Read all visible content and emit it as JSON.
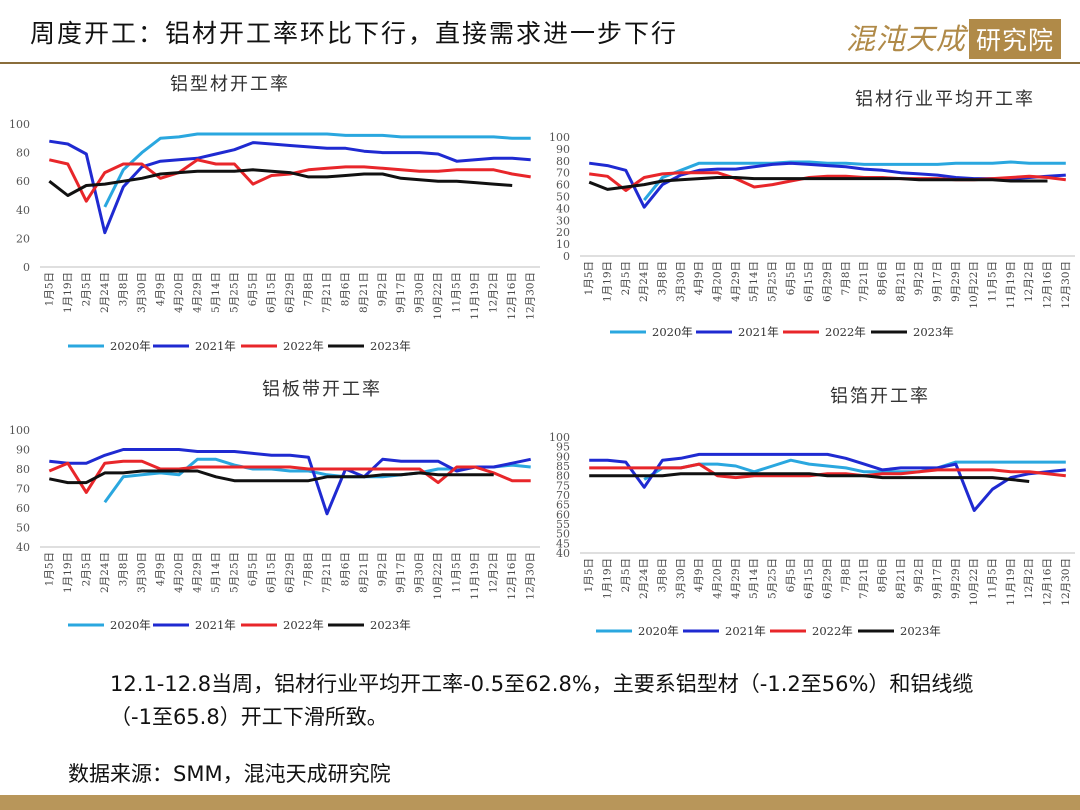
{
  "header": {
    "title": "周度开工：铝材开工率环比下行，直接需求进一步下行",
    "logo_text": "混沌天成",
    "logo_box_text": "研究院"
  },
  "summary": "12.1-12.8当周，铝材行业平均开工率-0.5至62.8%，主要系铝型材（-1.2至56%）和铝线缆（-1至65.8）开工下滑所致。",
  "source": "数据来源：SMM，混沌天成研究院",
  "colors": {
    "2020": "#2aa7df",
    "2021": "#1f2ad1",
    "2022": "#e8262a",
    "2023": "#111111",
    "accent": "#b08a48"
  },
  "chart_data": [
    {
      "type": "line",
      "title": "铝型材开工率",
      "x": [
        "1月5日",
        "1月19日",
        "2月5日",
        "2月24日",
        "3月8日",
        "3月30日",
        "4月9日",
        "4月20日",
        "4月29日",
        "5月14日",
        "5月25日",
        "6月5日",
        "6月15日",
        "6月29日",
        "7月8日",
        "7月21日",
        "8月6日",
        "8月21日",
        "9月2日",
        "9月17日",
        "9月30日",
        "10月22日",
        "11月5日",
        "11月19日",
        "12月2日",
        "12月16日",
        "12月30日"
      ],
      "ylim": [
        0,
        100
      ],
      "yticks": [
        0,
        20,
        40,
        60,
        80,
        100
      ],
      "series": [
        {
          "name": "2020年",
          "values": [
            null,
            null,
            null,
            42,
            68,
            80,
            90,
            91,
            93,
            93,
            93,
            93,
            93,
            93,
            93,
            93,
            92,
            92,
            92,
            91,
            91,
            91,
            91,
            91,
            91,
            90,
            90
          ]
        },
        {
          "name": "2021年",
          "values": [
            88,
            86,
            79,
            24,
            56,
            70,
            74,
            75,
            76,
            79,
            82,
            87,
            86,
            85,
            84,
            83,
            83,
            81,
            80,
            80,
            80,
            79,
            74,
            75,
            76,
            76,
            75
          ]
        },
        {
          "name": "2022年",
          "values": [
            75,
            72,
            46,
            66,
            72,
            72,
            62,
            66,
            75,
            72,
            72,
            58,
            64,
            65,
            68,
            69,
            70,
            70,
            69,
            68,
            67,
            67,
            68,
            68,
            68,
            65,
            63
          ]
        },
        {
          "name": "2023年",
          "values": [
            60,
            50,
            57,
            58,
            60,
            62,
            65,
            66,
            67,
            67,
            67,
            68,
            67,
            66,
            63,
            63,
            64,
            65,
            65,
            62,
            61,
            60,
            60,
            59,
            58,
            57,
            null
          ]
        }
      ]
    },
    {
      "type": "line",
      "title": "铝材行业平均开工率",
      "x": [
        "1月5日",
        "1月19日",
        "2月5日",
        "2月24日",
        "3月8日",
        "3月30日",
        "4月9日",
        "4月20日",
        "4月29日",
        "5月14日",
        "5月25日",
        "6月5日",
        "6月15日",
        "6月29日",
        "7月8日",
        "7月21日",
        "8月6日",
        "8月21日",
        "9月2日",
        "9月17日",
        "9月29日",
        "10月22日",
        "11月5日",
        "11月19日",
        "12月2日",
        "12月16日",
        "12月30日"
      ],
      "ylim": [
        0,
        100
      ],
      "yticks": [
        0,
        10,
        20,
        30,
        40,
        50,
        60,
        70,
        80,
        90,
        100
      ],
      "series": [
        {
          "name": "2020年",
          "values": [
            null,
            null,
            null,
            47,
            66,
            72,
            78,
            78,
            78,
            78,
            78,
            79,
            79,
            78,
            78,
            77,
            77,
            77,
            77,
            77,
            78,
            78,
            78,
            79,
            78,
            78,
            78
          ]
        },
        {
          "name": "2021年",
          "values": [
            78,
            76,
            72,
            41,
            60,
            68,
            72,
            73,
            73,
            75,
            77,
            78,
            77,
            76,
            75,
            73,
            72,
            70,
            69,
            68,
            66,
            65,
            65,
            65,
            66,
            67,
            68
          ]
        },
        {
          "name": "2022年",
          "values": [
            69,
            67,
            55,
            66,
            69,
            70,
            70,
            70,
            65,
            58,
            60,
            63,
            66,
            67,
            67,
            66,
            66,
            65,
            65,
            65,
            64,
            64,
            65,
            66,
            67,
            66,
            64
          ]
        },
        {
          "name": "2023年",
          "values": [
            62,
            56,
            58,
            60,
            63,
            64,
            65,
            66,
            66,
            65,
            65,
            65,
            65,
            65,
            65,
            65,
            65,
            65,
            64,
            64,
            64,
            64,
            64,
            63,
            63,
            63,
            null
          ]
        }
      ]
    },
    {
      "type": "line",
      "title": "铝板带开工率",
      "x": [
        "1月5日",
        "1月19日",
        "2月5日",
        "2月24日",
        "3月8日",
        "3月30日",
        "4月9日",
        "4月20日",
        "4月29日",
        "5月14日",
        "5月25日",
        "6月5日",
        "6月15日",
        "6月29日",
        "7月8日",
        "7月21日",
        "8月6日",
        "8月21日",
        "9月2日",
        "9月17日",
        "9月30日",
        "10月22日",
        "11月5日",
        "11月19日",
        "12月2日",
        "12月16日",
        "12月30日"
      ],
      "ylim": [
        40,
        100
      ],
      "yticks": [
        40,
        50,
        60,
        70,
        80,
        90,
        100
      ],
      "series": [
        {
          "name": "2020年",
          "values": [
            null,
            null,
            null,
            63,
            76,
            77,
            78,
            77,
            85,
            85,
            82,
            80,
            80,
            79,
            79,
            77,
            76,
            76,
            76,
            77,
            78,
            80,
            80,
            81,
            81,
            82,
            81
          ]
        },
        {
          "name": "2021年",
          "values": [
            84,
            83,
            83,
            87,
            90,
            90,
            90,
            90,
            89,
            89,
            89,
            88,
            87,
            87,
            86,
            57,
            80,
            76,
            85,
            84,
            84,
            84,
            79,
            81,
            81,
            83,
            85
          ]
        },
        {
          "name": "2022年",
          "values": [
            79,
            83,
            68,
            83,
            84,
            84,
            80,
            80,
            81,
            81,
            81,
            81,
            81,
            81,
            80,
            80,
            80,
            80,
            80,
            80,
            80,
            73,
            81,
            81,
            78,
            74,
            74
          ]
        },
        {
          "name": "2023年",
          "values": [
            75,
            73,
            73,
            78,
            78,
            79,
            79,
            79,
            79,
            76,
            74,
            74,
            74,
            74,
            74,
            76,
            76,
            76,
            77,
            77,
            78,
            77,
            77,
            77,
            77,
            null,
            null
          ]
        }
      ]
    },
    {
      "type": "line",
      "title": "铝箔开工率",
      "x": [
        "1月5日",
        "1月19日",
        "2月5日",
        "2月24日",
        "3月8日",
        "3月30日",
        "4月9日",
        "4月20日",
        "4月29日",
        "5月14日",
        "5月25日",
        "6月5日",
        "6月15日",
        "6月29日",
        "7月8日",
        "7月21日",
        "8月6日",
        "8月21日",
        "9月2日",
        "9月17日",
        "9月29日",
        "10月22日",
        "11月5日",
        "11月19日",
        "12月2日",
        "12月16日",
        "12月30日"
      ],
      "ylim": [
        40,
        100
      ],
      "yticks": [
        40,
        45,
        50,
        55,
        60,
        65,
        70,
        75,
        80,
        85,
        90,
        95,
        100
      ],
      "series": [
        {
          "name": "2020年",
          "values": [
            null,
            null,
            null,
            78,
            84,
            84,
            86,
            86,
            85,
            82,
            85,
            88,
            86,
            85,
            84,
            82,
            82,
            82,
            82,
            84,
            87,
            87,
            87,
            87,
            87,
            87,
            87
          ]
        },
        {
          "name": "2021年",
          "values": [
            88,
            88,
            87,
            74,
            88,
            89,
            91,
            91,
            91,
            91,
            91,
            91,
            91,
            91,
            89,
            86,
            83,
            84,
            84,
            84,
            86,
            62,
            73,
            79,
            81,
            82,
            83
          ]
        },
        {
          "name": "2022年",
          "values": [
            84,
            84,
            84,
            84,
            84,
            84,
            86,
            80,
            79,
            80,
            80,
            80,
            80,
            81,
            81,
            80,
            81,
            81,
            82,
            83,
            83,
            83,
            83,
            82,
            82,
            81,
            80
          ]
        },
        {
          "name": "2023年",
          "values": [
            80,
            80,
            80,
            80,
            80,
            81,
            81,
            81,
            81,
            81,
            81,
            81,
            81,
            80,
            80,
            80,
            79,
            79,
            79,
            79,
            79,
            79,
            79,
            78,
            77,
            null,
            null
          ]
        }
      ]
    }
  ]
}
